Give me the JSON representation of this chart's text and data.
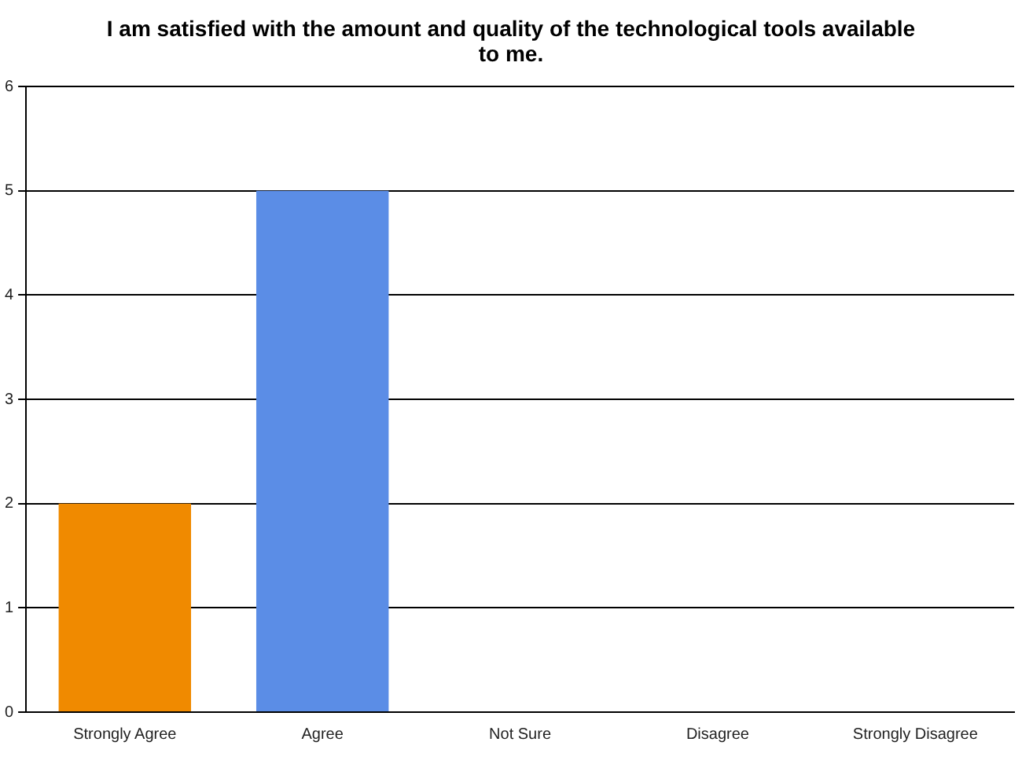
{
  "chart_data": {
    "type": "bar",
    "title": "I am satisfied with the amount and quality of the technological tools available to me.",
    "categories": [
      "Strongly Agree",
      "Agree",
      "Not Sure",
      "Disagree",
      "Strongly Disagree"
    ],
    "values": [
      2,
      5,
      0,
      0,
      0
    ],
    "colors": [
      "#f08a00",
      "#5b8de6",
      "#5b8de6",
      "#5b8de6",
      "#5b8de6"
    ],
    "ylim": [
      0,
      6
    ],
    "yticks": [
      0,
      1,
      2,
      3,
      4,
      5,
      6
    ],
    "grid": "y",
    "legend": false
  }
}
